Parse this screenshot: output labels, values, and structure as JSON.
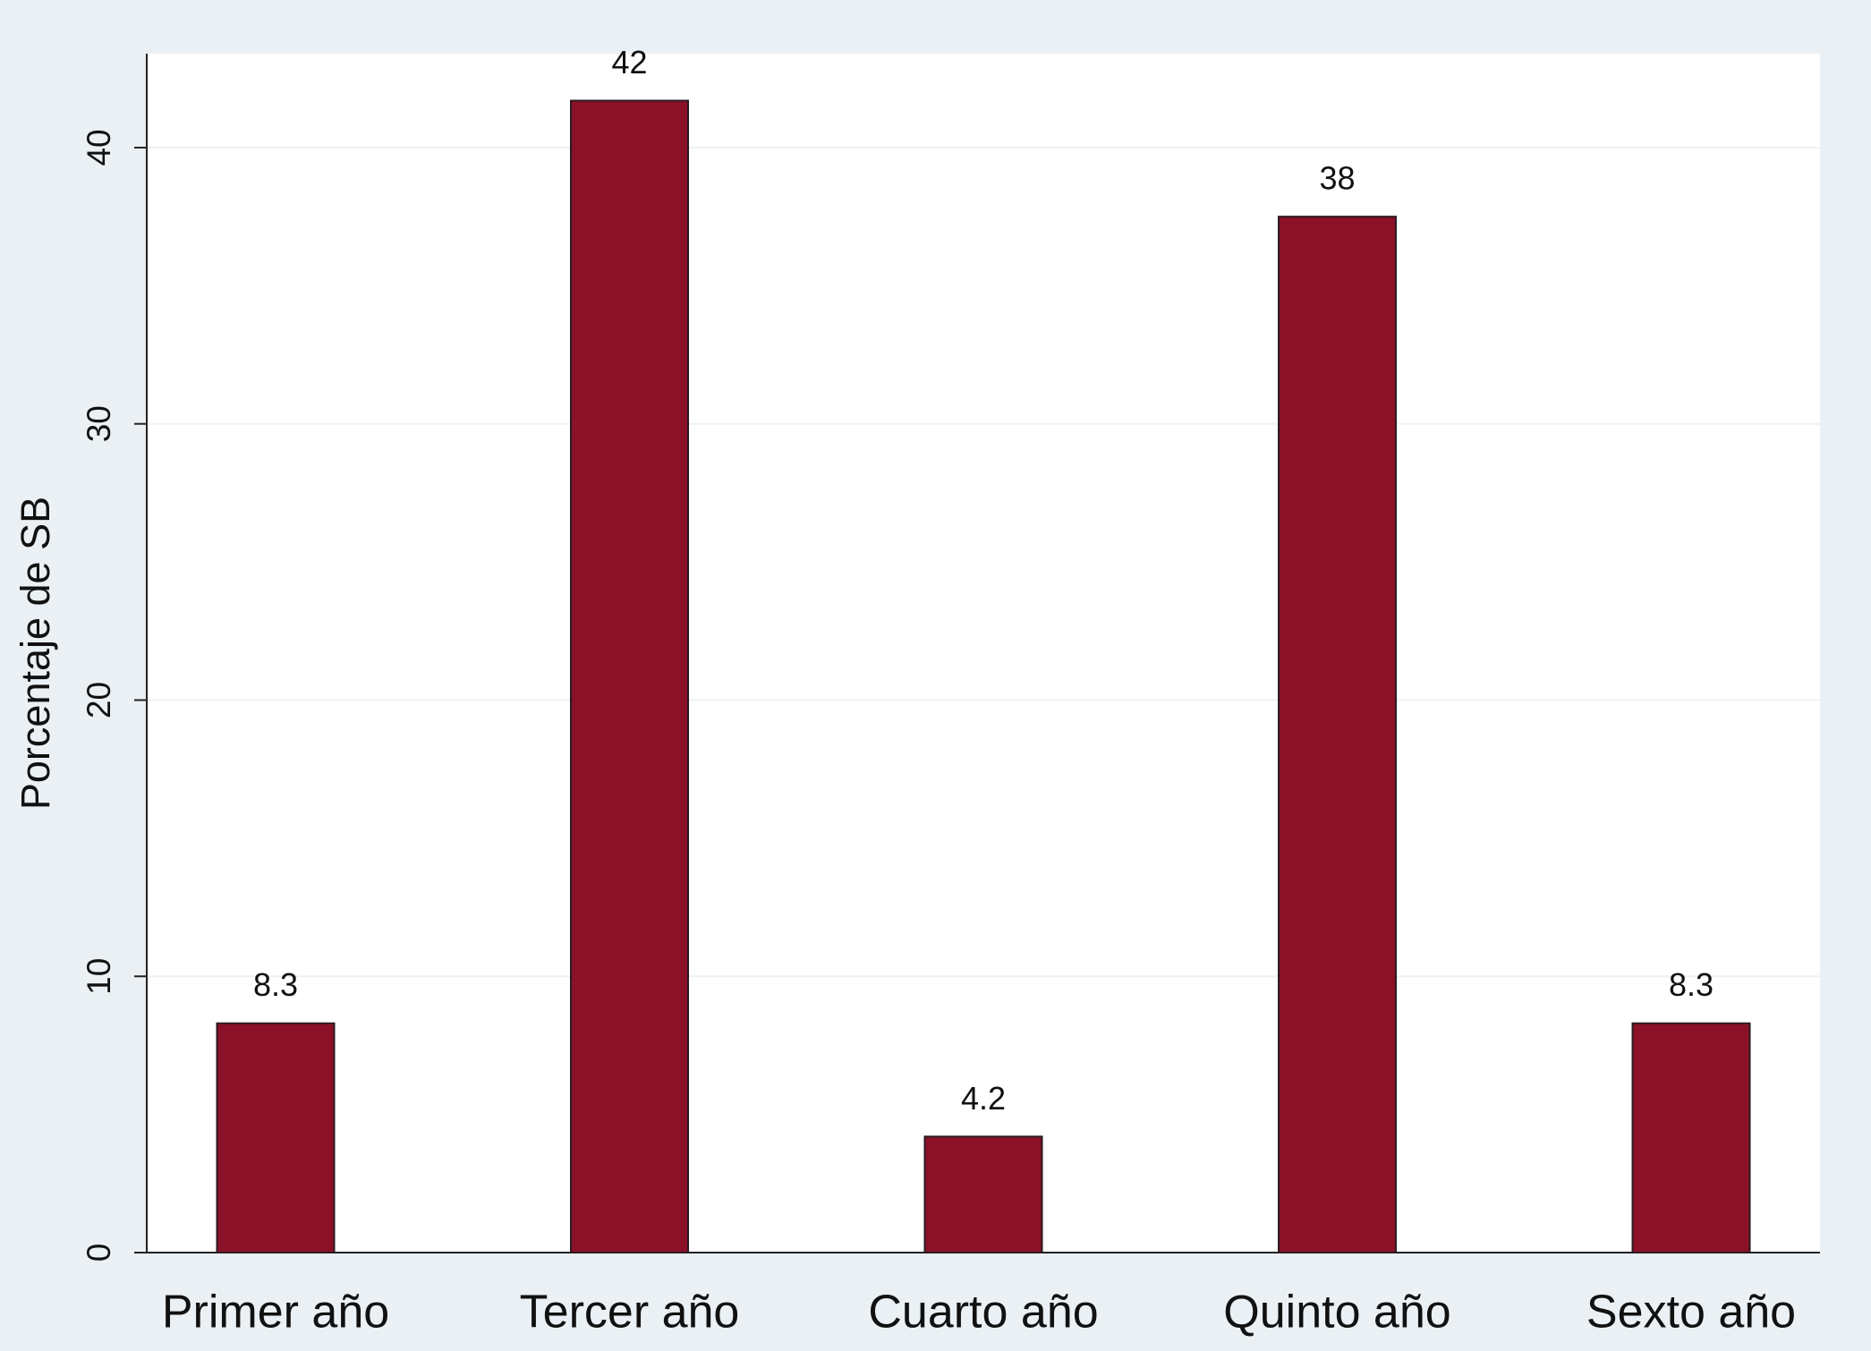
{
  "chart_data": {
    "type": "bar",
    "y_label": "Porcentaje de SB",
    "categories": [
      "Primer año",
      "Tercer año",
      "Cuarto año",
      "Quinto año",
      "Sexto año"
    ],
    "values": [
      8.3,
      41.7,
      4.2,
      37.5,
      8.3
    ],
    "value_labels": [
      "8.3",
      "42",
      "4.2",
      "38",
      "8.3"
    ],
    "color": "#8b1128",
    "ylim": [
      0,
      43.4
    ],
    "yticks": [
      0,
      10,
      20,
      30,
      40
    ],
    "grid": true
  }
}
